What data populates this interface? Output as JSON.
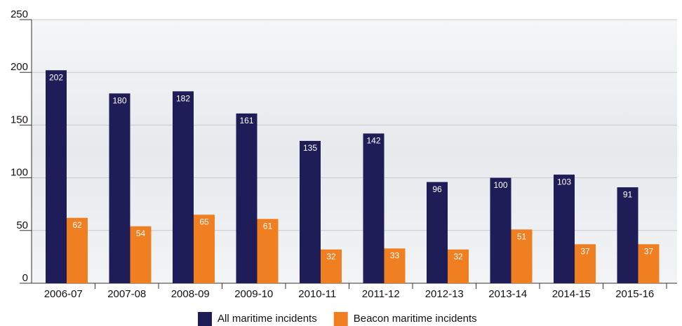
{
  "chart_data": {
    "type": "bar",
    "categories": [
      "2006-07",
      "2007-08",
      "2008-09",
      "2009-10",
      "2010-11",
      "2011-12",
      "2012-13",
      "2013-14",
      "2014-15",
      "2015-16"
    ],
    "series": [
      {
        "name": "All maritime incidents",
        "color": "#1f1d57",
        "values": [
          202,
          180,
          182,
          161,
          135,
          142,
          96,
          100,
          103,
          91
        ]
      },
      {
        "name": "Beacon maritime incidents",
        "color": "#f07f22",
        "values": [
          62,
          54,
          65,
          61,
          32,
          33,
          32,
          51,
          37,
          37
        ]
      }
    ],
    "ylim": [
      0,
      250
    ],
    "yticks": [
      0,
      50,
      100,
      150,
      200,
      250
    ],
    "grid": true,
    "legend": "bottom"
  }
}
